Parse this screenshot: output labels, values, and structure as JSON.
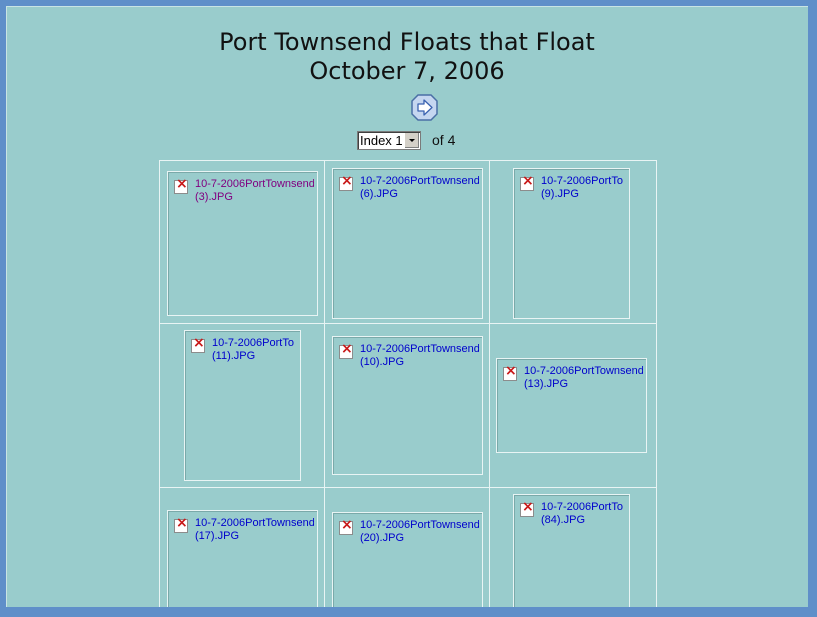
{
  "page": {
    "title_line1": "Port Townsend Floats that Float",
    "title_line2": "October 7, 2006"
  },
  "nav": {
    "next_icon": "next-arrow-icon",
    "selected_index": "Index 1",
    "of_label": "of 4"
  },
  "thumbnails": [
    {
      "line1": "10-7-2006PortTownsend",
      "line2": "(3).JPG",
      "visited": true
    },
    {
      "line1": "10-7-2006PortTownsend",
      "line2": "(6).JPG",
      "visited": false
    },
    {
      "line1": "10-7-2006PortTo",
      "line2": "(9).JPG",
      "visited": false
    },
    {
      "line1": "10-7-2006PortTo",
      "line2": "(11).JPG",
      "visited": false
    },
    {
      "line1": "10-7-2006PortTownsend",
      "line2": "(10).JPG",
      "visited": false
    },
    {
      "line1": "10-7-2006PortTownsend",
      "line2": "(13).JPG",
      "visited": false
    },
    {
      "line1": "10-7-2006PortTownsend",
      "line2": "(17).JPG",
      "visited": false
    },
    {
      "line1": "10-7-2006PortTownsend",
      "line2": "(20).JPG",
      "visited": false
    },
    {
      "line1": "10-7-2006PortTo",
      "line2": "(84).JPG",
      "visited": false
    }
  ],
  "colors": {
    "page_background": "#99cccc",
    "link": "#0000cc",
    "visited_link": "#800080",
    "window_border": "#5f8fc9"
  }
}
